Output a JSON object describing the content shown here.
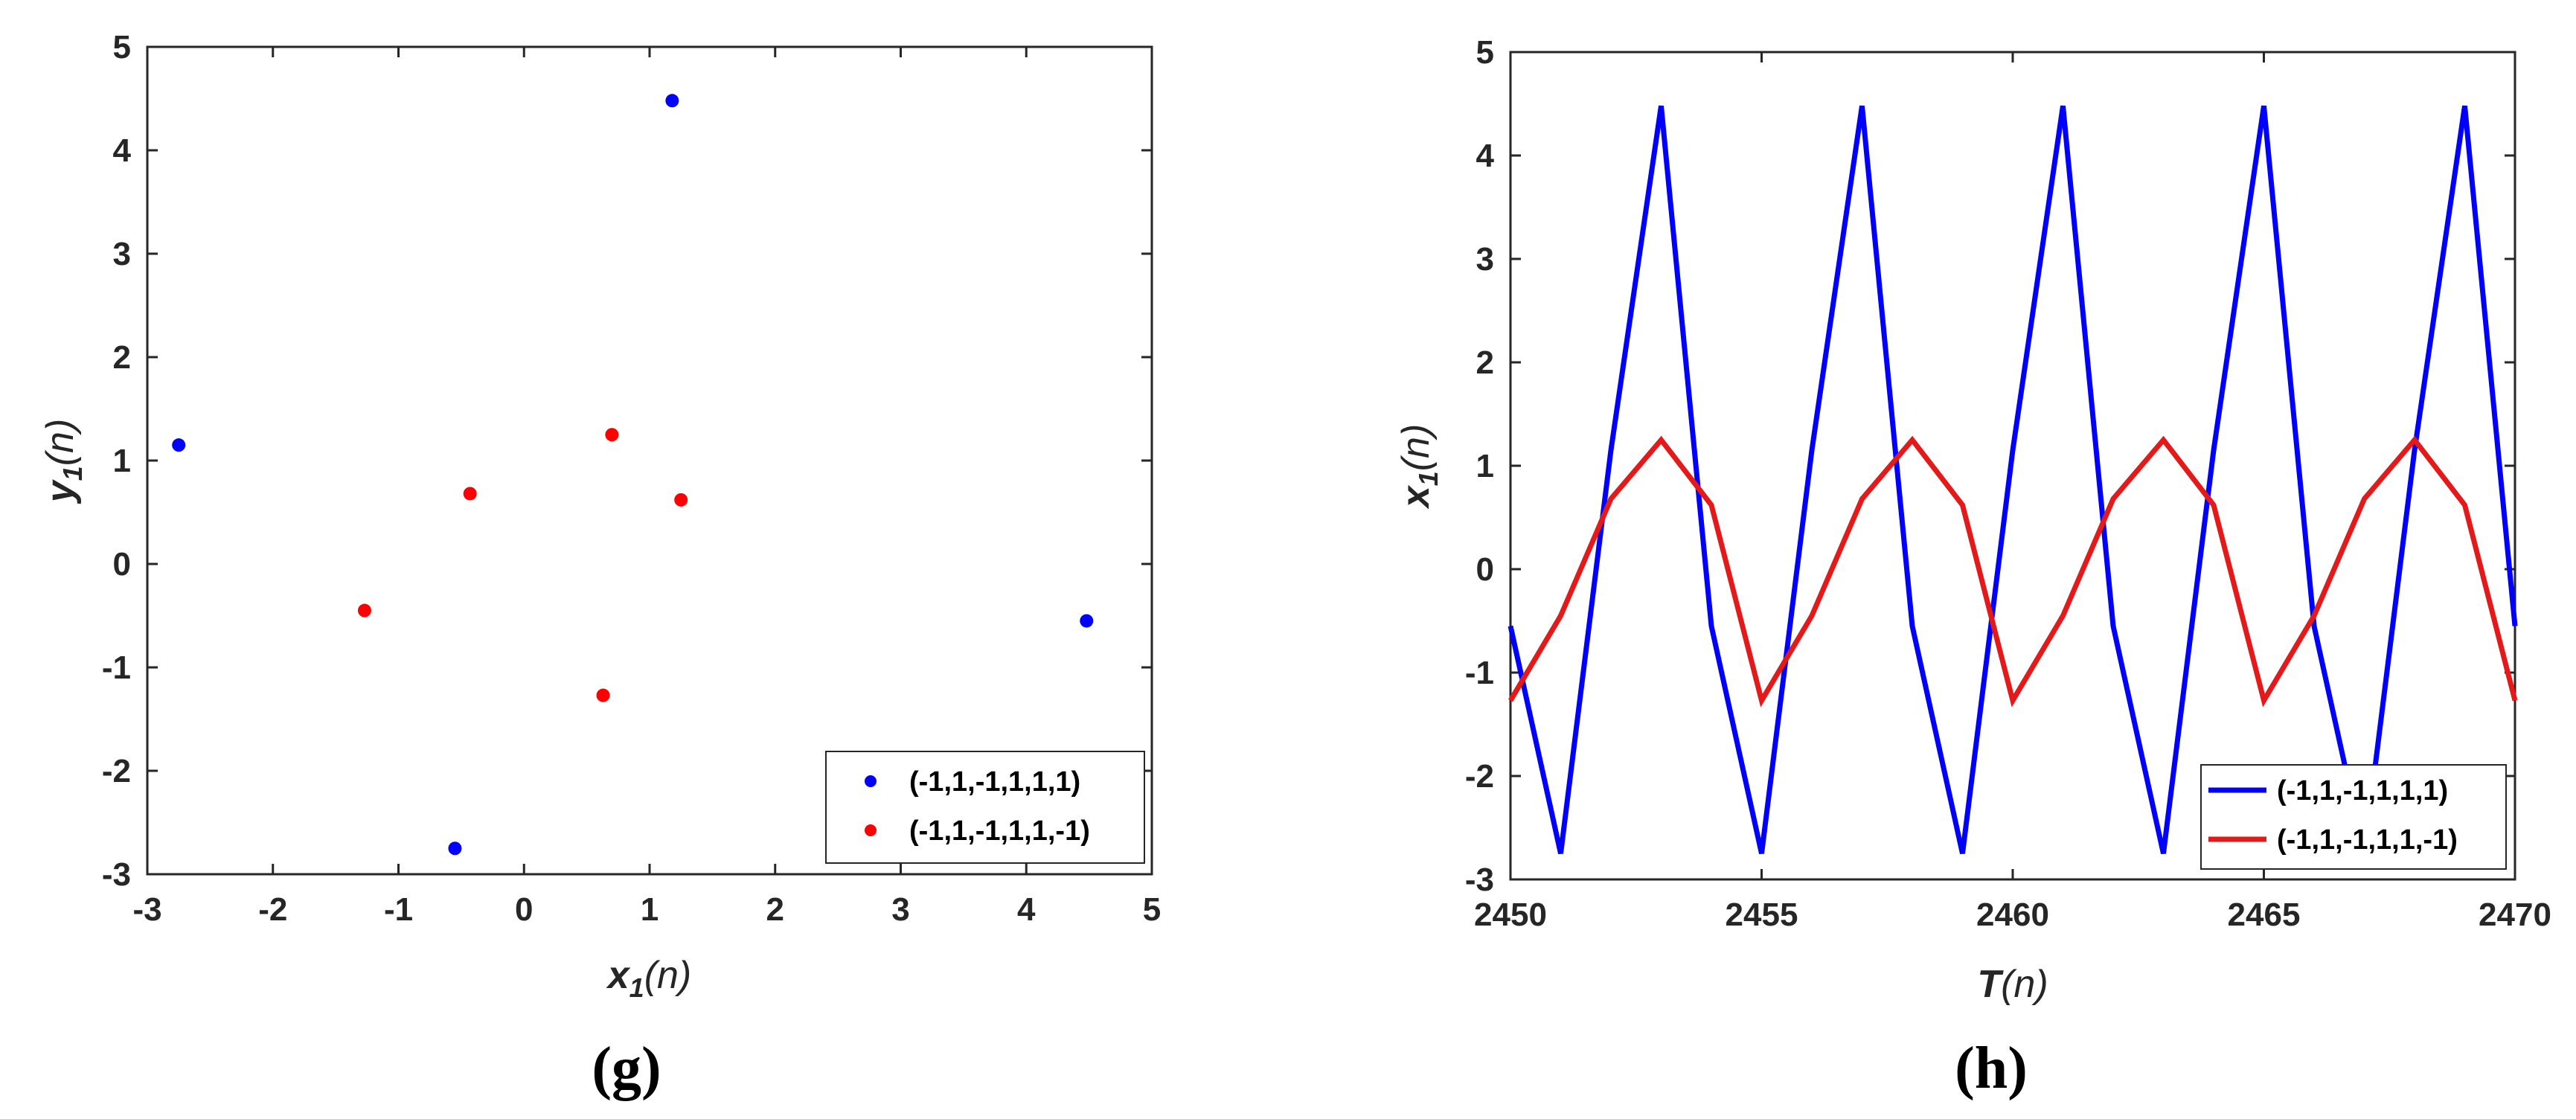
{
  "chart_data": [
    {
      "type": "scatter",
      "panel_label": "(g)",
      "xlabel": {
        "main": "x",
        "sub": "1",
        "arg": "(n)"
      },
      "ylabel": {
        "main": "y",
        "sub": "1",
        "arg": "(n)"
      },
      "xlim": [
        -3,
        5
      ],
      "ylim": [
        -3,
        5
      ],
      "xticks": [
        -3,
        -2,
        -1,
        0,
        1,
        2,
        3,
        4,
        5
      ],
      "yticks": [
        -3,
        -2,
        -1,
        0,
        1,
        2,
        3,
        4,
        5
      ],
      "legend_position": "bottom-right",
      "series": [
        {
          "name": "(-1,1,-1,1,1,1)",
          "color": "#0000ff",
          "points": [
            [
              1.18,
              4.48
            ],
            [
              -2.75,
              1.15
            ],
            [
              4.48,
              -0.55
            ],
            [
              -0.55,
              -2.75
            ]
          ]
        },
        {
          "name": "(-1,1,-1,1,1,-1)",
          "color": "#ff0000",
          "points": [
            [
              0.7,
              1.25
            ],
            [
              -0.43,
              0.68
            ],
            [
              1.25,
              0.62
            ],
            [
              -1.27,
              -0.45
            ],
            [
              0.63,
              -1.27
            ]
          ]
        }
      ]
    },
    {
      "type": "line",
      "panel_label": "(h)",
      "xlabel": {
        "main": "T",
        "arg": "(n)"
      },
      "ylabel": {
        "main": "x",
        "sub": "1",
        "arg": "(n)"
      },
      "xlim": [
        2450,
        2470
      ],
      "ylim": [
        -3,
        5
      ],
      "xticks": [
        2450,
        2455,
        2460,
        2465,
        2470
      ],
      "yticks": [
        -3,
        -2,
        -1,
        0,
        1,
        2,
        3,
        4,
        5
      ],
      "legend_position": "bottom-right",
      "x": [
        2450,
        2451,
        2452,
        2453,
        2454,
        2455,
        2456,
        2457,
        2458,
        2459,
        2460,
        2461,
        2462,
        2463,
        2464,
        2465,
        2466,
        2467,
        2468,
        2469,
        2470
      ],
      "series": [
        {
          "name": "(-1,1,-1,1,1,1)",
          "color": "#0000ff",
          "values": [
            -0.55,
            -2.75,
            1.15,
            4.48,
            -0.55,
            -2.75,
            1.15,
            4.48,
            -0.55,
            -2.75,
            1.15,
            4.48,
            -0.55,
            -2.75,
            1.15,
            4.48,
            -0.55,
            -2.75,
            1.15,
            4.48,
            -0.55
          ]
        },
        {
          "name": "(-1,1,-1,1,1,-1)",
          "color": "#e41a1a",
          "values": [
            -1.27,
            -0.45,
            0.68,
            1.25,
            0.62,
            -1.27,
            -0.45,
            0.68,
            1.25,
            0.62,
            -1.27,
            -0.45,
            0.68,
            1.25,
            0.62,
            -1.27,
            -0.45,
            0.68,
            1.25,
            0.62,
            -1.27
          ]
        }
      ]
    }
  ]
}
